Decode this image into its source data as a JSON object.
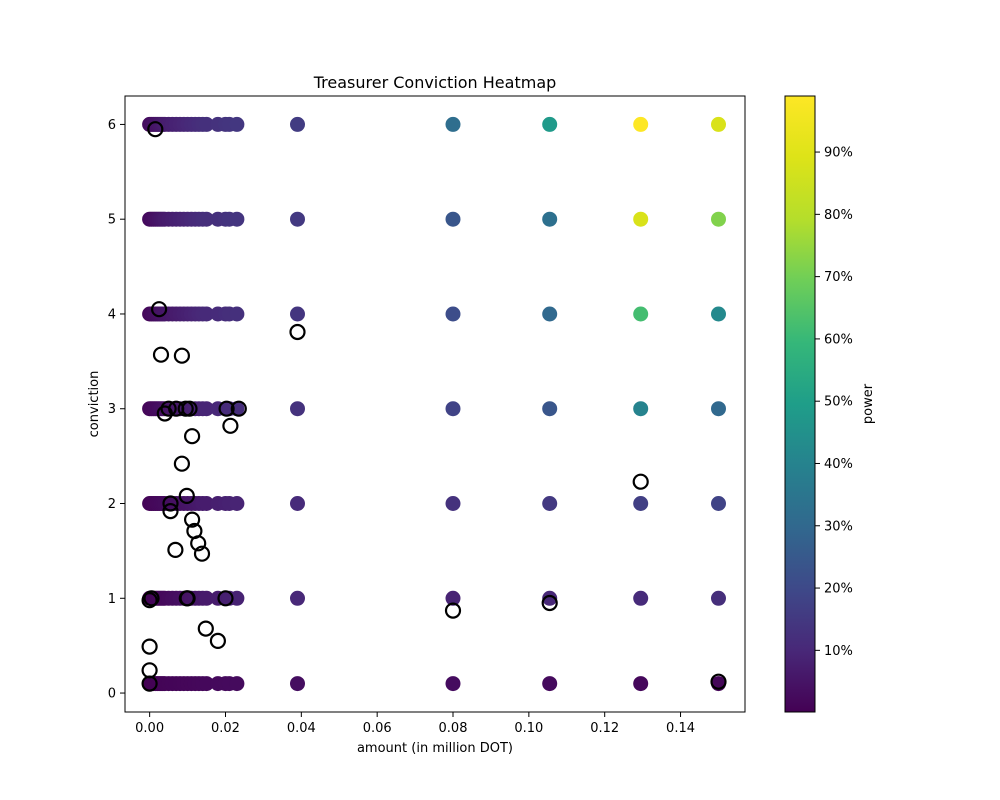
{
  "chart_data": {
    "type": "scatter",
    "title": "Treasurer Conviction Heatmap",
    "xlabel": "amount (in million DOT)",
    "ylabel": "conviction",
    "xlim": [
      -0.0065,
      0.157
    ],
    "ylim": [
      -0.2,
      6.3
    ],
    "x_ticks": [
      0.0,
      0.02,
      0.04,
      0.06,
      0.08,
      0.1,
      0.12,
      0.14
    ],
    "x_tick_labels": [
      "0.00",
      "0.02",
      "0.04",
      "0.06",
      "0.08",
      "0.10",
      "0.12",
      "0.14"
    ],
    "y_ticks": [
      0,
      1,
      2,
      3,
      4,
      5,
      6
    ],
    "y_tick_labels": [
      "0",
      "1",
      "2",
      "3",
      "4",
      "5",
      "6"
    ],
    "grid": false,
    "colorbar": {
      "label": "power",
      "colormap": "viridis",
      "range": [
        0.1,
        99
      ],
      "ticks": [
        10,
        20,
        30,
        40,
        50,
        60,
        70,
        80,
        90
      ],
      "tick_labels": [
        "10%",
        "20%",
        "30%",
        "40%",
        "50%",
        "60%",
        "70%",
        "80%",
        "90%"
      ]
    },
    "grid_rows": [
      {
        "y": 0.1,
        "y_label": "0.1"
      },
      {
        "y": 1,
        "y_label": "1"
      },
      {
        "y": 2,
        "y_label": "2"
      },
      {
        "y": 3,
        "y_label": "3"
      },
      {
        "y": 4,
        "y_label": "4"
      },
      {
        "y": 5,
        "y_label": "5"
      },
      {
        "y": 6,
        "y_label": "6"
      }
    ],
    "amounts": [
      0.0,
      0.0005,
      0.001,
      0.0015,
      0.002,
      0.0025,
      0.003,
      0.0035,
      0.004,
      0.005,
      0.006,
      0.007,
      0.008,
      0.009,
      0.01,
      0.011,
      0.012,
      0.013,
      0.014,
      0.015,
      0.018,
      0.02,
      0.021,
      0.023,
      0.039,
      0.08,
      0.1055,
      0.1295,
      0.15
    ],
    "power_by_row": {
      "0.1": [
        0.1,
        0.2,
        0.3,
        0.4,
        0.5,
        0.6,
        0.7,
        0.8,
        0.9,
        1.0,
        1.1,
        1.2,
        1.3,
        1.4,
        1.5,
        1.6,
        1.7,
        1.8,
        1.9,
        2.0,
        2.2,
        2.4,
        2.5,
        2.7,
        3.5,
        3.0,
        2.5,
        2.0,
        1.5
      ],
      "1": [
        0.5,
        0.6,
        0.8,
        1.0,
        1.2,
        1.4,
        1.6,
        1.8,
        2.0,
        2.4,
        2.8,
        3.2,
        3.6,
        4.0,
        4.4,
        4.8,
        5.2,
        5.6,
        6.0,
        6.4,
        7.0,
        7.5,
        8.0,
        8.5,
        10.0,
        9.0,
        10.0,
        11.0,
        12.0
      ],
      "2": [
        1.0,
        1.2,
        1.4,
        1.6,
        1.8,
        2.0,
        2.2,
        2.4,
        2.6,
        3.0,
        3.4,
        3.8,
        4.2,
        4.6,
        5.0,
        5.4,
        5.8,
        6.2,
        6.6,
        7.0,
        7.6,
        8.0,
        8.4,
        9.0,
        11.0,
        13.0,
        15.0,
        17.0,
        18.0
      ],
      "3": [
        1.5,
        1.8,
        2.1,
        2.4,
        2.7,
        3.0,
        3.3,
        3.6,
        3.9,
        4.5,
        5.0,
        5.5,
        6.0,
        6.5,
        7.0,
        7.5,
        8.0,
        8.5,
        9.0,
        9.5,
        10.0,
        10.5,
        11.0,
        11.5,
        13.0,
        18.0,
        24.0,
        40.0,
        30.0
      ],
      "4": [
        2.0,
        2.4,
        2.8,
        3.2,
        3.6,
        4.0,
        4.4,
        4.8,
        5.2,
        5.8,
        6.2,
        6.8,
        7.2,
        7.8,
        8.2,
        8.8,
        9.2,
        9.8,
        10.2,
        10.6,
        11.0,
        11.5,
        12.0,
        12.5,
        14.0,
        21.0,
        30.0,
        62.0,
        42.0
      ],
      "5": [
        2.5,
        3.0,
        3.5,
        4.0,
        4.5,
        5.0,
        5.5,
        6.0,
        6.5,
        7.0,
        7.5,
        8.0,
        8.5,
        9.0,
        9.5,
        10.0,
        10.5,
        11.0,
        11.5,
        12.0,
        12.5,
        13.0,
        13.5,
        14.0,
        15.0,
        24.0,
        33.0,
        88.0,
        72.0
      ],
      "6": [
        3.0,
        3.5,
        4.0,
        4.5,
        5.0,
        5.5,
        6.0,
        6.5,
        7.0,
        7.5,
        8.0,
        8.5,
        9.0,
        9.5,
        10.0,
        10.5,
        11.0,
        11.5,
        12.0,
        12.5,
        13.0,
        13.5,
        14.0,
        14.5,
        16.0,
        32.0,
        48.0,
        99.0,
        88.0
      ]
    },
    "open_circles": [
      {
        "x": 0.0,
        "y": 0.1
      },
      {
        "x": 0.0,
        "y": 0.24
      },
      {
        "x": 0.0,
        "y": 0.49
      },
      {
        "x": 0.0,
        "y": 0.98
      },
      {
        "x": 0.0005,
        "y": 1.0
      },
      {
        "x": 0.0015,
        "y": 5.95
      },
      {
        "x": 0.0025,
        "y": 4.05
      },
      {
        "x": 0.003,
        "y": 3.57
      },
      {
        "x": 0.004,
        "y": 2.95
      },
      {
        "x": 0.005,
        "y": 3.0
      },
      {
        "x": 0.0055,
        "y": 2.0
      },
      {
        "x": 0.0055,
        "y": 1.92
      },
      {
        "x": 0.0068,
        "y": 1.51
      },
      {
        "x": 0.007,
        "y": 3.0
      },
      {
        "x": 0.0085,
        "y": 3.56
      },
      {
        "x": 0.0085,
        "y": 2.42
      },
      {
        "x": 0.0095,
        "y": 3.0
      },
      {
        "x": 0.0098,
        "y": 2.08
      },
      {
        "x": 0.0098,
        "y": 1.0
      },
      {
        "x": 0.01,
        "y": 1.0
      },
      {
        "x": 0.0105,
        "y": 3.0
      },
      {
        "x": 0.0112,
        "y": 2.71
      },
      {
        "x": 0.0112,
        "y": 1.83
      },
      {
        "x": 0.0118,
        "y": 1.71
      },
      {
        "x": 0.0128,
        "y": 1.58
      },
      {
        "x": 0.0138,
        "y": 1.47
      },
      {
        "x": 0.0148,
        "y": 0.68
      },
      {
        "x": 0.018,
        "y": 0.55
      },
      {
        "x": 0.02,
        "y": 1.0
      },
      {
        "x": 0.0203,
        "y": 3.0
      },
      {
        "x": 0.0213,
        "y": 2.82
      },
      {
        "x": 0.0235,
        "y": 3.0
      },
      {
        "x": 0.039,
        "y": 3.81
      },
      {
        "x": 0.08,
        "y": 0.87
      },
      {
        "x": 0.1055,
        "y": 0.95
      },
      {
        "x": 0.1295,
        "y": 2.23
      },
      {
        "x": 0.15,
        "y": 0.12
      }
    ]
  }
}
